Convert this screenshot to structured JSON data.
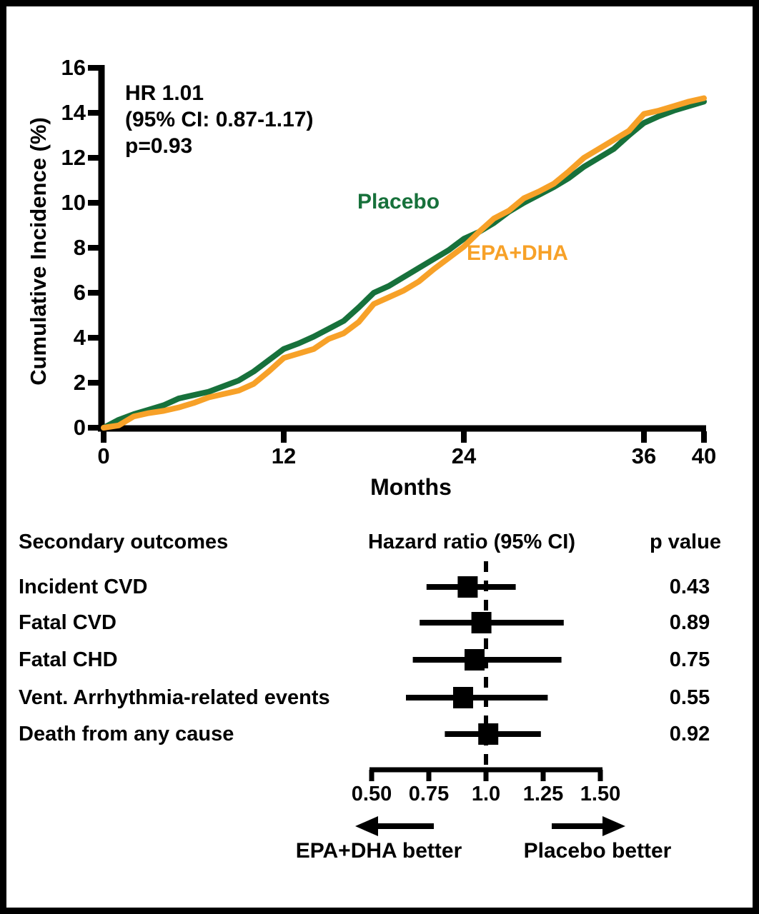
{
  "figure": {
    "background": "#ffffff",
    "border_color": "#000000",
    "text_color": "#000000"
  },
  "chart_data": [
    {
      "type": "line",
      "title": "",
      "xlabel": "Months",
      "ylabel": "Cumulative Incidence (%)",
      "xlim": [
        0,
        40
      ],
      "ylim": [
        0,
        16
      ],
      "xticks": [
        0,
        12,
        24,
        36,
        40
      ],
      "yticks": [
        0,
        2,
        4,
        6,
        8,
        10,
        12,
        14,
        16
      ],
      "grid": "off",
      "legend_position": "inline-labels",
      "annotation": [
        "HR 1.01",
        "(95% CI: 0.87-1.17)",
        "p=0.93"
      ],
      "x": [
        0,
        1,
        2,
        3,
        4,
        5,
        6,
        7,
        8,
        9,
        10,
        11,
        12,
        13,
        14,
        15,
        16,
        17,
        18,
        19,
        20,
        21,
        22,
        23,
        24,
        25,
        26,
        27,
        28,
        29,
        30,
        31,
        32,
        33,
        34,
        35,
        36,
        37,
        38,
        39,
        40
      ],
      "series": [
        {
          "name": "Placebo",
          "color": "#17713b",
          "values": [
            0,
            0.35,
            0.6,
            0.8,
            1.0,
            1.3,
            1.45,
            1.6,
            1.85,
            2.1,
            2.5,
            3.0,
            3.5,
            3.75,
            4.05,
            4.4,
            4.75,
            5.35,
            6.0,
            6.3,
            6.7,
            7.1,
            7.5,
            7.9,
            8.4,
            8.7,
            9.1,
            9.6,
            10.0,
            10.35,
            10.7,
            11.1,
            11.6,
            12.0,
            12.4,
            13.0,
            13.55,
            13.85,
            14.1,
            14.3,
            14.5
          ]
        },
        {
          "name": "EPA+DHA",
          "color": "#f7a128",
          "values": [
            0,
            0.1,
            0.5,
            0.65,
            0.75,
            0.9,
            1.1,
            1.35,
            1.5,
            1.65,
            1.95,
            2.5,
            3.1,
            3.3,
            3.5,
            3.95,
            4.2,
            4.7,
            5.5,
            5.8,
            6.1,
            6.5,
            7.05,
            7.55,
            8.05,
            8.7,
            9.3,
            9.65,
            10.2,
            10.5,
            10.85,
            11.4,
            12.0,
            12.4,
            12.8,
            13.2,
            13.95,
            14.1,
            14.3,
            14.5,
            14.65
          ]
        }
      ]
    },
    {
      "type": "scatter",
      "subtype": "forest-plot",
      "col_headers": {
        "outcomes": "Secondary outcomes",
        "hazard": "Hazard ratio (95% CI)",
        "p": "p value"
      },
      "rows": [
        {
          "label": "Incident CVD",
          "hr": 0.92,
          "ci_low": 0.74,
          "ci_high": 1.13,
          "p_value": "0.43"
        },
        {
          "label": "Fatal CVD",
          "hr": 0.98,
          "ci_low": 0.71,
          "ci_high": 1.34,
          "p_value": "0.89"
        },
        {
          "label": "Fatal CHD",
          "hr": 0.95,
          "ci_low": 0.68,
          "ci_high": 1.33,
          "p_value": "0.75"
        },
        {
          "label": "Vent. Arrhythmia-related events",
          "hr": 0.9,
          "ci_low": 0.65,
          "ci_high": 1.27,
          "p_value": "0.55"
        },
        {
          "label": "Death from any cause",
          "hr": 1.01,
          "ci_low": 0.82,
          "ci_high": 1.24,
          "p_value": "0.92"
        }
      ],
      "axis_ticks": [
        "0.50",
        "0.75",
        "1.0",
        "1.25",
        "1.50"
      ],
      "axis_tick_values": [
        0.5,
        0.75,
        1.0,
        1.25,
        1.5
      ],
      "reference_line": 1.0,
      "xlim": [
        0.5,
        1.5
      ],
      "marker_color": "#000000",
      "direction_labels": {
        "left": "EPA+DHA better",
        "right": "Placebo better"
      }
    }
  ]
}
